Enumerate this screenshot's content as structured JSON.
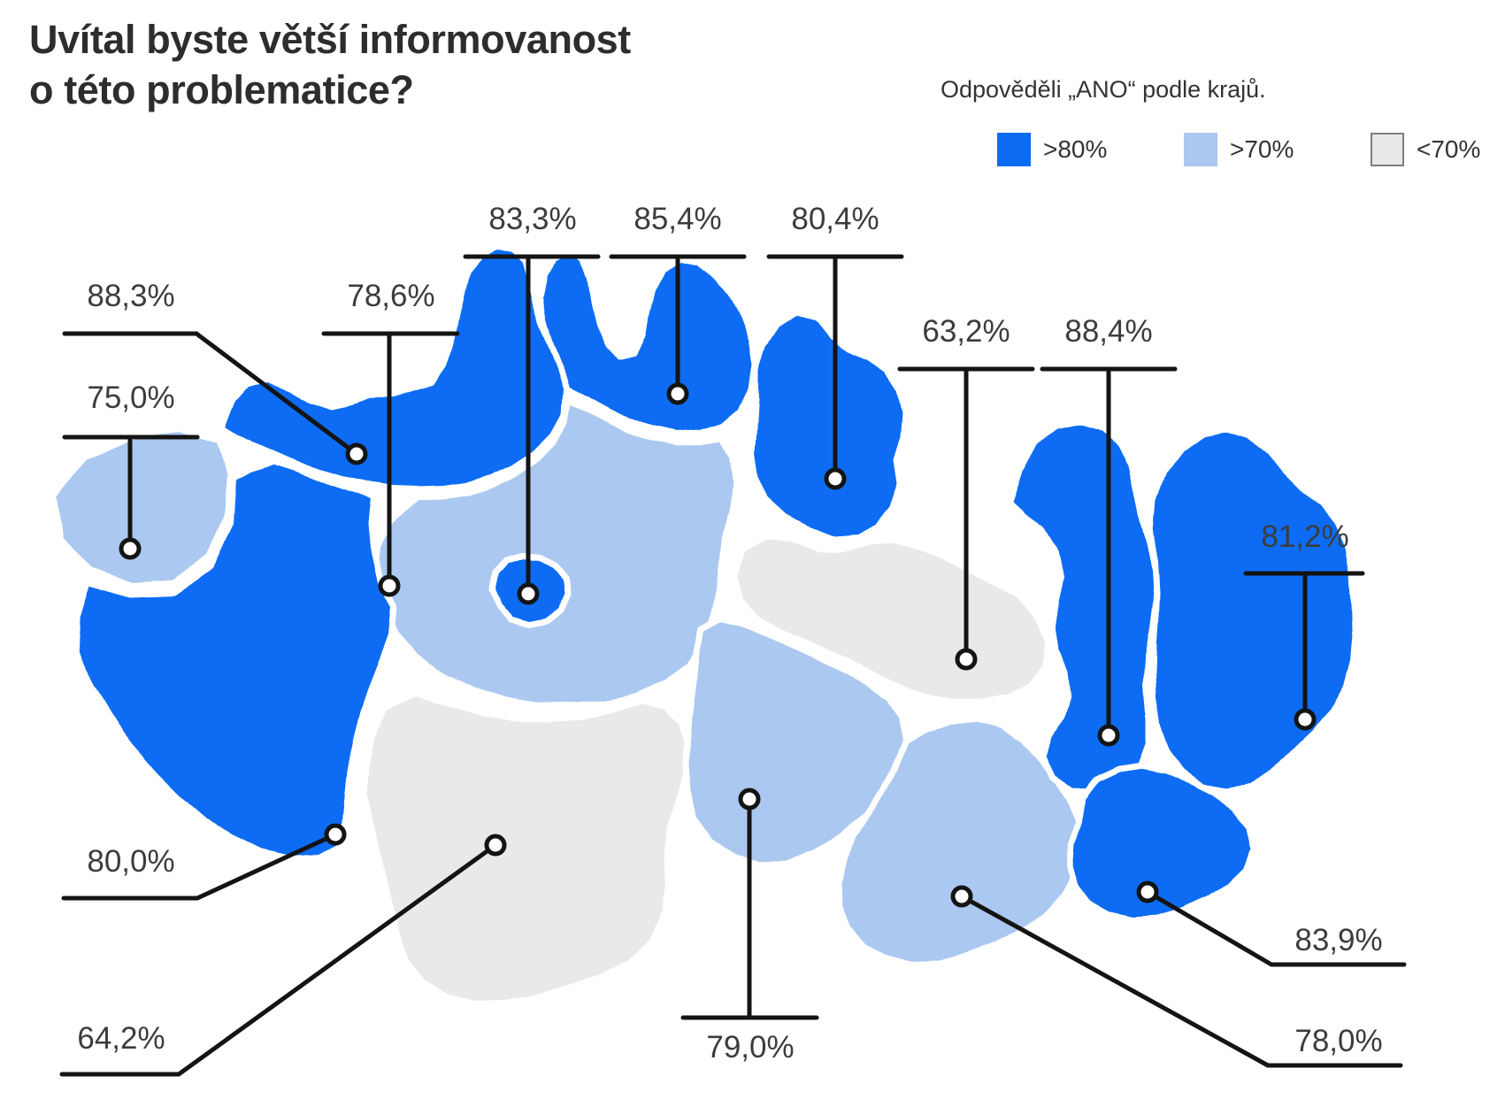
{
  "title": {
    "line1": "Uvítal byste větší informovanost",
    "line2": "o této problematice?"
  },
  "legend": {
    "title": "Odpověděli „ANO“ podle krajů.",
    "items": [
      {
        "label": ">80%",
        "color": "#0b6cf3"
      },
      {
        "label": ">70%",
        "color": "#abc8f0"
      },
      {
        "label": "<70%",
        "color": "#e9e9e9",
        "border_color": "#7f7f7f"
      }
    ]
  },
  "chart_data": {
    "type": "choropleth-map",
    "title": "Uvítal byste větší informovanost o této problematice?",
    "legend_title": "Odpověděli „ANO“ podle krajů.",
    "unit": "%",
    "category_colors": {
      ">80%": "#0b6cf3",
      ">70%": "#abc8f0",
      "<70%": "#e9e9e9"
    },
    "regions": [
      {
        "id": "karlovarsky",
        "value": 75.0,
        "value_label": "75,0%",
        "category": ">70%"
      },
      {
        "id": "ustecky",
        "value": 88.3,
        "value_label": "88,3%",
        "category": ">80%"
      },
      {
        "id": "liberecky",
        "value": 85.4,
        "value_label": "85,4%",
        "category": ">80%"
      },
      {
        "id": "kralovehradecky",
        "value": 80.4,
        "value_label": "80,4%",
        "category": ">80%"
      },
      {
        "id": "pardubicky",
        "value": 63.2,
        "value_label": "63,2%",
        "category": "<70%"
      },
      {
        "id": "praha",
        "value": 83.3,
        "value_label": "83,3%",
        "category": ">80%"
      },
      {
        "id": "stredocesky",
        "value": 78.6,
        "value_label": "78,6%",
        "category": ">70%"
      },
      {
        "id": "plzensky",
        "value": 80.0,
        "value_label": "80,0%",
        "category": ">80%"
      },
      {
        "id": "jihocesky",
        "value": 64.2,
        "value_label": "64,2%",
        "category": "<70%"
      },
      {
        "id": "vysocina",
        "value": 79.0,
        "value_label": "79,0%",
        "category": ">70%"
      },
      {
        "id": "jihomoravsky",
        "value": 78.0,
        "value_label": "78,0%",
        "category": ">70%"
      },
      {
        "id": "olomoucky",
        "value": 88.4,
        "value_label": "88,4%",
        "category": ">80%"
      },
      {
        "id": "zlinsky",
        "value": 83.9,
        "value_label": "83,9%",
        "category": ">80%"
      },
      {
        "id": "moravskoslezsky",
        "value": 81.2,
        "value_label": "81,2%",
        "category": ">80%"
      }
    ]
  }
}
